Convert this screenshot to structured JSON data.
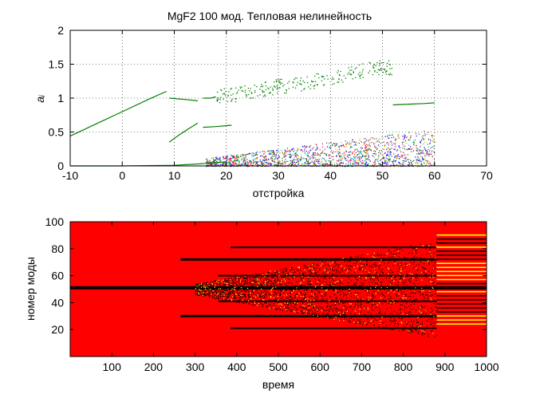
{
  "figure": {
    "background": "#ffffff"
  },
  "chart_data": [
    {
      "type": "scatter",
      "title": "MgF2 100 мод. Тепловая нелинейность",
      "xlabel": "отстройка",
      "ylabel": "a_i",
      "ylabel_display": "aᵢ",
      "xlim": [
        -10,
        70
      ],
      "ylim": [
        0,
        2
      ],
      "xticks": [
        -10,
        0,
        10,
        20,
        30,
        40,
        50,
        60,
        70
      ],
      "yticks": [
        0,
        0.5,
        1,
        1.5,
        2
      ],
      "ytick_labels": [
        "0",
        "0.5",
        "1",
        "1.5",
        "2"
      ],
      "grid": true,
      "grid_style": "dotted",
      "series": [
        {
          "color": "#008000",
          "x": [
            -10,
            -5,
            0,
            5,
            8.5
          ],
          "y": [
            0.44,
            0.62,
            0.8,
            0.98,
            1.1
          ]
        },
        {
          "color": "#008000",
          "x": [
            9,
            11,
            13,
            14.5
          ],
          "y": [
            0.35,
            0.46,
            0.56,
            0.63
          ]
        },
        {
          "color": "#008000",
          "x": [
            9,
            12,
            14.5
          ],
          "y": [
            1.0,
            0.98,
            0.96
          ]
        },
        {
          "color": "#008000",
          "x": [
            15.5,
            17,
            18
          ],
          "y": [
            1.0,
            1.0,
            1.02
          ]
        },
        {
          "color": "#008000",
          "x": [
            15.5,
            18,
            21
          ],
          "y": [
            0.57,
            0.58,
            0.6
          ]
        },
        {
          "color": "#008000",
          "x": [
            18,
            25,
            30,
            35,
            40,
            45,
            48
          ],
          "y": [
            1.02,
            1.1,
            1.18,
            1.22,
            1.3,
            1.38,
            1.45
          ]
        },
        {
          "color": "#008000",
          "x": [
            52,
            55,
            58,
            60
          ],
          "y": [
            0.9,
            0.91,
            0.92,
            0.93
          ]
        },
        {
          "color": "#008000",
          "x": [
            -10,
            0,
            10,
            15,
            20
          ],
          "y": [
            0.0,
            0.0,
            0.01,
            0.03,
            0.06
          ]
        }
      ],
      "noise_region": {
        "x": [
          16,
          60
        ],
        "y_max": 0.55,
        "colors": [
          "#0000ff",
          "#008000",
          "#ff0000",
          "#00bfbf",
          "#bf00bf",
          "#bfbf00",
          "#404040"
        ]
      }
    },
    {
      "type": "heatmap",
      "xlabel": "время",
      "ylabel": "номер моды",
      "xlim": [
        0,
        1000
      ],
      "ylim": [
        0,
        100
      ],
      "xticks": [
        100,
        200,
        300,
        400,
        500,
        600,
        700,
        800,
        900,
        1000
      ],
      "yticks": [
        20,
        40,
        60,
        80,
        100
      ],
      "background_color": "#ff0000",
      "line_color": "#000000",
      "highlight_color": "#ffff00",
      "bands": [
        {
          "mode": 51,
          "start": 0,
          "end": 1000
        },
        {
          "mode": 72,
          "start": 265,
          "end": 880
        },
        {
          "mode": 30,
          "start": 265,
          "end": 880
        },
        {
          "mode": 60,
          "start": 355,
          "end": 880
        },
        {
          "mode": 41,
          "start": 355,
          "end": 880
        },
        {
          "mode": 21,
          "start": 385,
          "end": 880
        },
        {
          "mode": 81,
          "start": 385,
          "end": 880
        }
      ]
    }
  ]
}
